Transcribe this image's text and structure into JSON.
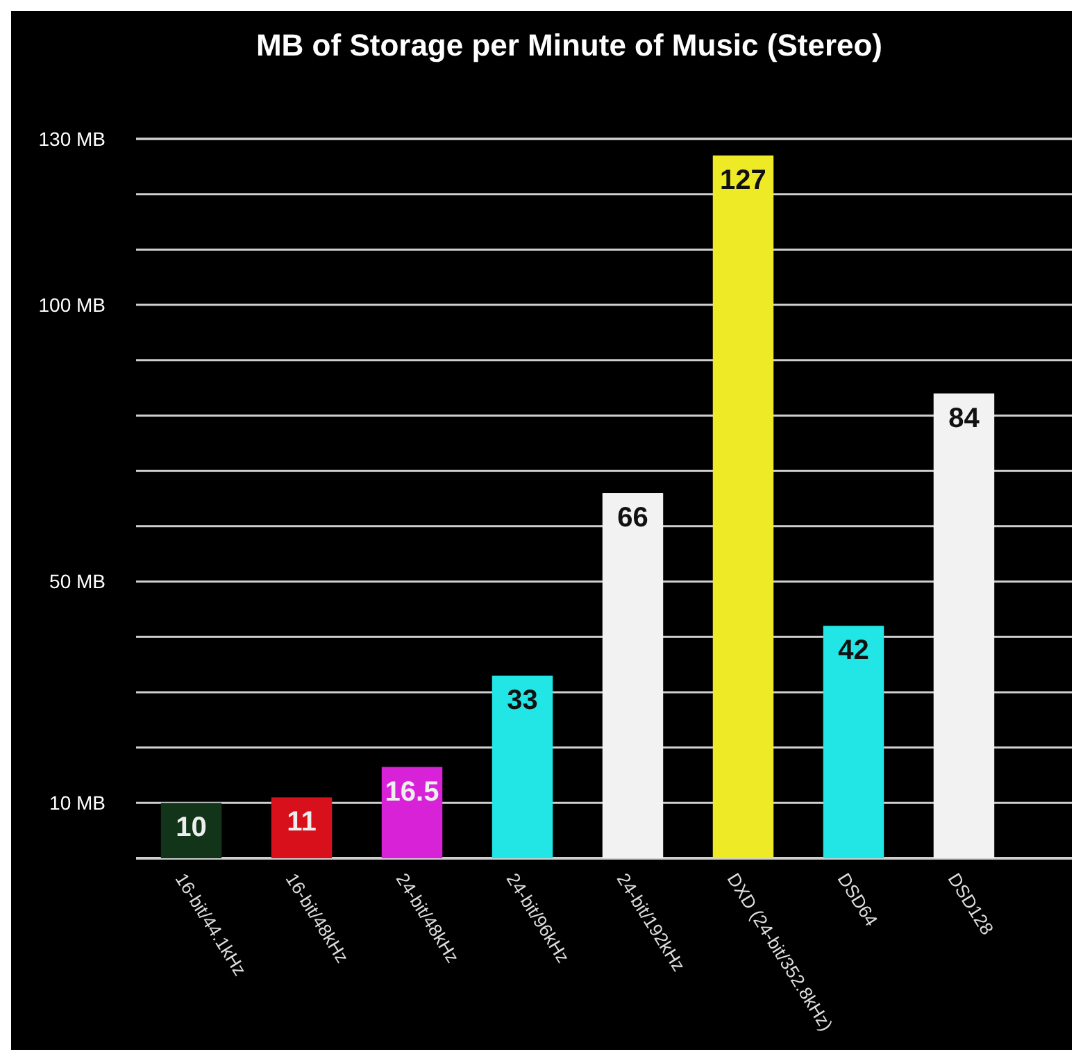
{
  "chart_data": {
    "type": "bar",
    "title": "MB of Storage per Minute of Music (Stereo)",
    "categories": [
      "16-bit/44.1kHz",
      "16-bit/48kHz",
      "24-bit/48kHz",
      "24-bit/96kHz",
      "24-bit/192kHz",
      "DXD (24-bit/352.8kHz)",
      "DSD64",
      "DSD128"
    ],
    "values": [
      10,
      11,
      16.5,
      33,
      66,
      127,
      42,
      84
    ],
    "colors": [
      "#12351a",
      "#d8101c",
      "#d822d8",
      "#22e6e6",
      "#f2f2f2",
      "#eeea26",
      "#22e6e6",
      "#f2f2f2"
    ],
    "ylim": [
      0,
      130
    ],
    "yticks": [
      {
        "value": 0,
        "label": null
      },
      {
        "value": 10,
        "label": "10 MB"
      },
      {
        "value": 20,
        "label": null
      },
      {
        "value": 30,
        "label": null
      },
      {
        "value": 40,
        "label": null
      },
      {
        "value": 50,
        "label": "50 MB"
      },
      {
        "value": 60,
        "label": null
      },
      {
        "value": 70,
        "label": null
      },
      {
        "value": 80,
        "label": null
      },
      {
        "value": 90,
        "label": null
      },
      {
        "value": 100,
        "label": "100 MB"
      },
      {
        "value": 110,
        "label": null
      },
      {
        "value": 120,
        "label": null
      },
      {
        "value": 130,
        "label": "130 MB"
      }
    ],
    "grid": "y",
    "data_labels": true
  }
}
